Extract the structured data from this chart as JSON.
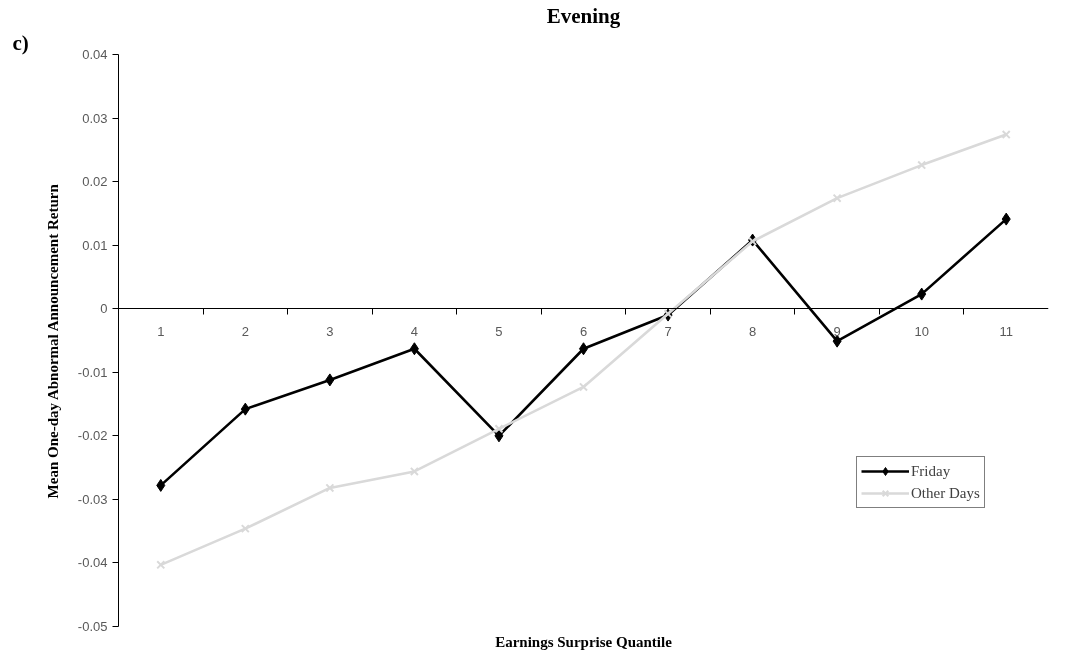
{
  "chart_data": {
    "type": "line",
    "title": "Evening",
    "xlabel": "Earnings Surprise Quantile",
    "ylabel": "Mean One-day Abnormal Announcement Return",
    "annotations": [
      "c)"
    ],
    "categories": [
      "1",
      "2",
      "3",
      "4",
      "5",
      "6",
      "7",
      "8",
      "9",
      "10",
      "11"
    ],
    "series": [
      {
        "name": "Friday",
        "color": "#000000",
        "marker": "diamond",
        "values": [
          -0.0278,
          -0.0158,
          -0.0112,
          -0.0063,
          -0.02,
          -0.0063,
          -0.001,
          0.0108,
          -0.0051,
          0.0023,
          0.0141
        ]
      },
      {
        "name": "Other Days",
        "color": "#d9d9d9",
        "marker": "cross",
        "values": [
          -0.0403,
          -0.0346,
          -0.0282,
          -0.0256,
          -0.0189,
          -0.0123,
          -0.0008,
          0.0106,
          0.0174,
          0.0226,
          0.0274
        ]
      }
    ],
    "ylim": [
      -0.05,
      0.04
    ],
    "yticks": [
      -0.05,
      -0.04,
      -0.03,
      -0.02,
      -0.01,
      0,
      0.01,
      0.02,
      0.03,
      0.04
    ],
    "legend": "right",
    "line_style": "solid"
  }
}
